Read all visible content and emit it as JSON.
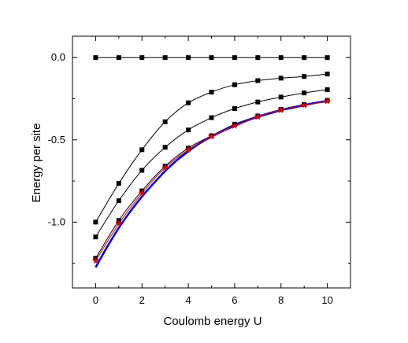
{
  "chart_data": {
    "type": "line",
    "title": "",
    "xlabel": "Coulomb energy U",
    "ylabel": "Energy per site",
    "xlim": [
      -1,
      11
    ],
    "ylim": [
      -1.4,
      0.13
    ],
    "xticks": [
      0,
      2,
      4,
      6,
      8,
      10
    ],
    "xtick_labels": [
      "0",
      "2",
      "4",
      "6",
      "8",
      "10"
    ],
    "yticks": [
      0.0,
      -0.5,
      -1.0
    ],
    "ytick_labels": [
      "0.0",
      "-0.5",
      "-1.0"
    ],
    "grid": false,
    "legend": "none",
    "series": [
      {
        "color": "#000000",
        "marker": "square",
        "x": [
          0,
          1,
          2,
          3,
          4,
          5,
          6,
          7,
          8,
          9,
          10
        ],
        "y": [
          0.0,
          0.0,
          0.0,
          0.0,
          0.0,
          0.0,
          0.0,
          0.0,
          0.0,
          0.0,
          0.0
        ]
      },
      {
        "color": "#000000",
        "marker": "square",
        "x": [
          0,
          1,
          2,
          3,
          4,
          5,
          6,
          7,
          8,
          9,
          10
        ],
        "y": [
          -1.0,
          -0.765,
          -0.56,
          -0.39,
          -0.275,
          -0.21,
          -0.165,
          -0.14,
          -0.125,
          -0.115,
          -0.1
        ]
      },
      {
        "color": "#000000",
        "marker": "square",
        "x": [
          0,
          1,
          2,
          3,
          4,
          5,
          6,
          7,
          8,
          9,
          10
        ],
        "y": [
          -1.09,
          -0.87,
          -0.685,
          -0.545,
          -0.44,
          -0.365,
          -0.31,
          -0.27,
          -0.24,
          -0.215,
          -0.195
        ]
      },
      {
        "color": "#000000",
        "marker": "square",
        "x": [
          0,
          1,
          2,
          3,
          4,
          5,
          6,
          7,
          8,
          9,
          10
        ],
        "y": [
          -1.22,
          -0.99,
          -0.81,
          -0.66,
          -0.55,
          -0.475,
          -0.405,
          -0.355,
          -0.315,
          -0.285,
          -0.26
        ]
      },
      {
        "color": "#e00000",
        "marker": "star",
        "x": [
          0,
          1,
          2,
          3,
          4,
          5,
          6,
          7,
          8,
          9,
          10
        ],
        "y": [
          -1.235,
          -1.01,
          -0.825,
          -0.67,
          -0.56,
          -0.48,
          -0.415,
          -0.36,
          -0.32,
          -0.29,
          -0.265
        ]
      },
      {
        "color": "#0000e0",
        "marker": "none",
        "x": [
          0,
          0.5,
          1,
          1.5,
          2,
          2.5,
          3,
          3.5,
          4,
          4.5,
          5,
          5.5,
          6,
          6.5,
          7,
          7.5,
          8,
          8.5,
          9,
          9.5,
          10
        ],
        "y": [
          -1.275,
          -1.15,
          -1.035,
          -0.935,
          -0.845,
          -0.765,
          -0.69,
          -0.625,
          -0.57,
          -0.52,
          -0.48,
          -0.445,
          -0.415,
          -0.385,
          -0.36,
          -0.34,
          -0.32,
          -0.305,
          -0.29,
          -0.275,
          -0.265
        ]
      }
    ]
  }
}
